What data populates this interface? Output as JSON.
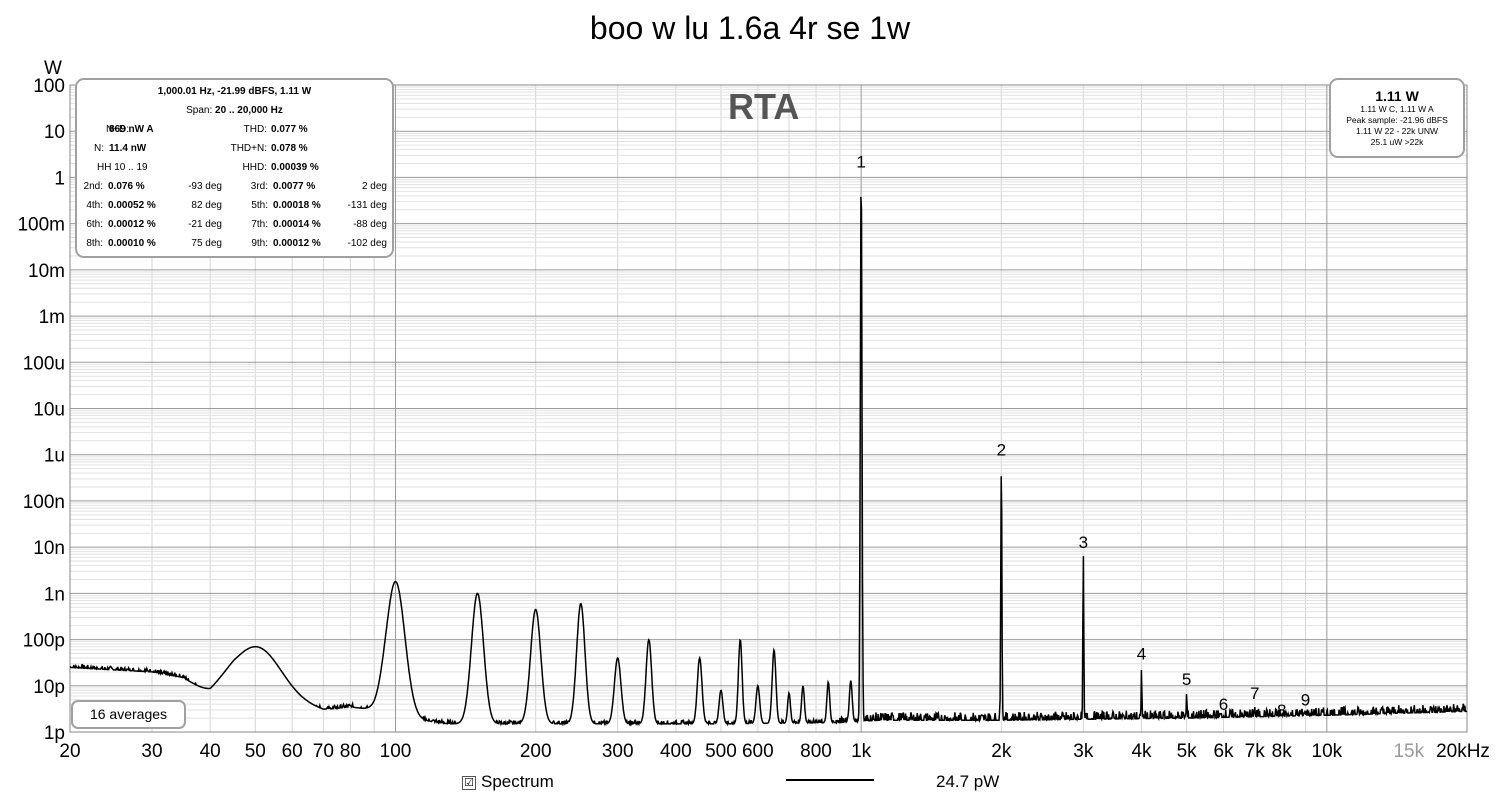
{
  "title": "boo w lu 1.6a 4r se 1w",
  "rta_label": "RTA",
  "y_unit": "W",
  "stats": {
    "line1": "1,000.01 Hz, -21.99 dBFS, 1.11 W",
    "span_label": "Span:",
    "span_value": "20 .. 20,000 Hz",
    "nd_label": "N+D:",
    "nd_value": "869 nW A",
    "thd_label": "THD:",
    "thd_value": "0.077 %",
    "n_label": "N:",
    "n_value": "11.4 nW",
    "thdn_label": "THD+N:",
    "thdn_value": "0.078 %",
    "hh_label": "HH 10 .. 19",
    "hhd_label": "HHD:",
    "hhd_value": "0.00039 %",
    "harmonics": [
      {
        "label": "2nd:",
        "value": "0.076 %",
        "deg": "-93 deg"
      },
      {
        "label": "3rd:",
        "value": "0.0077 %",
        "deg": "2 deg"
      },
      {
        "label": "4th:",
        "value": "0.00052 %",
        "deg": "82 deg"
      },
      {
        "label": "5th:",
        "value": "0.00018 %",
        "deg": "-131 deg"
      },
      {
        "label": "6th:",
        "value": "0.00012 %",
        "deg": "-21 deg"
      },
      {
        "label": "7th:",
        "value": "0.00014 %",
        "deg": "-88 deg"
      },
      {
        "label": "8th:",
        "value": "0.00010 %",
        "deg": "75 deg"
      },
      {
        "label": "9th:",
        "value": "0.00012 %",
        "deg": "-102 deg"
      }
    ]
  },
  "level": {
    "main": "1.11 W",
    "l1": "1.11 W C, 1.11 W A",
    "l2": "Peak sample: -21.96 dBFS",
    "l3": "1.11 W 22 - 22k UNW",
    "l4": "25.1 uW >22k"
  },
  "averages_label": "16 averages",
  "legend": {
    "checkbox": "☑",
    "label": "Spectrum",
    "value": "24.7 pW"
  },
  "chart_data": {
    "type": "line",
    "title": "boo w lu 1.6a 4r se 1w",
    "xlabel": "Hz",
    "ylabel": "W",
    "x_scale": "log",
    "y_scale": "log",
    "xlim": [
      20,
      20000
    ],
    "ylim": [
      1e-12,
      100
    ],
    "grid": true,
    "y_ticks": [
      {
        "v": 100,
        "label": "100"
      },
      {
        "v": 10,
        "label": "10"
      },
      {
        "v": 1,
        "label": "1"
      },
      {
        "v": 0.1,
        "label": "100m"
      },
      {
        "v": 0.01,
        "label": "10m"
      },
      {
        "v": 0.001,
        "label": "1m"
      },
      {
        "v": 0.0001,
        "label": "100u"
      },
      {
        "v": 1e-05,
        "label": "10u"
      },
      {
        "v": 1e-06,
        "label": "1u"
      },
      {
        "v": 1e-07,
        "label": "100n"
      },
      {
        "v": 1e-08,
        "label": "10n"
      },
      {
        "v": 1e-09,
        "label": "1n"
      },
      {
        "v": 1e-10,
        "label": "100p"
      },
      {
        "v": 1e-11,
        "label": "10p"
      },
      {
        "v": 1e-12,
        "label": "1p"
      }
    ],
    "x_ticks": [
      {
        "v": 20,
        "label": "20"
      },
      {
        "v": 30,
        "label": "30"
      },
      {
        "v": 40,
        "label": "40"
      },
      {
        "v": 50,
        "label": "50"
      },
      {
        "v": 60,
        "label": "60"
      },
      {
        "v": 70,
        "label": "70"
      },
      {
        "v": 80,
        "label": "80"
      },
      {
        "v": 100,
        "label": "100"
      },
      {
        "v": 200,
        "label": "200"
      },
      {
        "v": 300,
        "label": "300"
      },
      {
        "v": 400,
        "label": "400"
      },
      {
        "v": 500,
        "label": "500"
      },
      {
        "v": 600,
        "label": "600"
      },
      {
        "v": 800,
        "label": "800"
      },
      {
        "v": 1000,
        "label": "1k"
      },
      {
        "v": 2000,
        "label": "2k"
      },
      {
        "v": 3000,
        "label": "3k"
      },
      {
        "v": 4000,
        "label": "4k"
      },
      {
        "v": 5000,
        "label": "5k"
      },
      {
        "v": 6000,
        "label": "6k"
      },
      {
        "v": 7000,
        "label": "7k"
      },
      {
        "v": 8000,
        "label": "8k"
      },
      {
        "v": 10000,
        "label": "10k"
      },
      {
        "v": 15000,
        "label": "15k",
        "muted": true
      },
      {
        "v": 20000,
        "label": "20kHz"
      }
    ],
    "noise_floor": [
      [
        20,
        2.5e-11
      ],
      [
        25,
        2.2e-11
      ],
      [
        30,
        2e-11
      ],
      [
        35,
        1.5e-11
      ],
      [
        40,
        6e-12
      ],
      [
        45,
        1e-11
      ],
      [
        60,
        4.5e-12
      ],
      [
        70,
        3e-12
      ],
      [
        80,
        3.5e-12
      ],
      [
        90,
        3e-12
      ],
      [
        95,
        3.5e-12
      ],
      [
        105,
        2e-12
      ],
      [
        130,
        1.5e-12
      ],
      [
        170,
        1.5e-12
      ],
      [
        250,
        1.5e-12
      ],
      [
        500,
        1.5e-12
      ],
      [
        900,
        1.6e-12
      ],
      [
        1100,
        1.8e-12
      ],
      [
        2000,
        1.8e-12
      ],
      [
        5000,
        2e-12
      ],
      [
        10000,
        2.3e-12
      ],
      [
        20000,
        2.8e-12
      ]
    ],
    "peaks": [
      {
        "f": 50,
        "v": 7e-11,
        "w": 0.05
      },
      {
        "f": 100,
        "v": 1.8e-09,
        "w": 0.02
      },
      {
        "f": 150,
        "v": 1e-09,
        "w": 0.013
      },
      {
        "f": 200,
        "v": 4.5e-10,
        "w": 0.011
      },
      {
        "f": 250,
        "v": 6e-10,
        "w": 0.009
      },
      {
        "f": 300,
        "v": 4e-11,
        "w": 0.007
      },
      {
        "f": 350,
        "v": 1e-10,
        "w": 0.006
      },
      {
        "f": 450,
        "v": 4e-11,
        "w": 0.005
      },
      {
        "f": 500,
        "v": 8e-12,
        "w": 0.004
      },
      {
        "f": 550,
        "v": 1e-10,
        "w": 0.004
      },
      {
        "f": 600,
        "v": 1e-11,
        "w": 0.004
      },
      {
        "f": 650,
        "v": 6e-11,
        "w": 0.004
      },
      {
        "f": 700,
        "v": 7e-12,
        "w": 0.003
      },
      {
        "f": 750,
        "v": 1e-11,
        "w": 0.003
      },
      {
        "f": 850,
        "v": 1.2e-11,
        "w": 0.003
      },
      {
        "f": 950,
        "v": 1.3e-11,
        "w": 0.003
      },
      {
        "f": 1000,
        "v": 1.1,
        "w": 0.0018
      },
      {
        "f": 2000,
        "v": 6.5e-07,
        "w": 0.0012
      },
      {
        "f": 3000,
        "v": 6.5e-09,
        "w": 0.001
      },
      {
        "f": 4000,
        "v": 2.5e-11,
        "w": 0.0008
      },
      {
        "f": 5000,
        "v": 7e-12,
        "w": 0.0008
      },
      {
        "f": 6000,
        "v": 2e-12,
        "w": 0.0008
      },
      {
        "f": 7000,
        "v": 3.5e-12,
        "w": 0.0008
      },
      {
        "f": 8000,
        "v": 1.5e-12,
        "w": 0.0008
      },
      {
        "f": 9000,
        "v": 2.5e-12,
        "w": 0.0008
      }
    ],
    "harmonic_markers": [
      {
        "label": "1",
        "f": 1000,
        "v": 1.1
      },
      {
        "label": "2",
        "f": 2000,
        "v": 6.5e-07
      },
      {
        "label": "3",
        "f": 3000,
        "v": 6.5e-09
      },
      {
        "label": "4",
        "f": 4000,
        "v": 2.5e-11
      },
      {
        "label": "5",
        "f": 5000,
        "v": 7e-12
      },
      {
        "label": "6",
        "f": 6000,
        "v": 2e-12
      },
      {
        "label": "7",
        "f": 7000,
        "v": 3.5e-12
      },
      {
        "label": "8",
        "f": 8000,
        "v": 1.5e-12
      },
      {
        "label": "9",
        "f": 9000,
        "v": 2.5e-12
      }
    ]
  }
}
